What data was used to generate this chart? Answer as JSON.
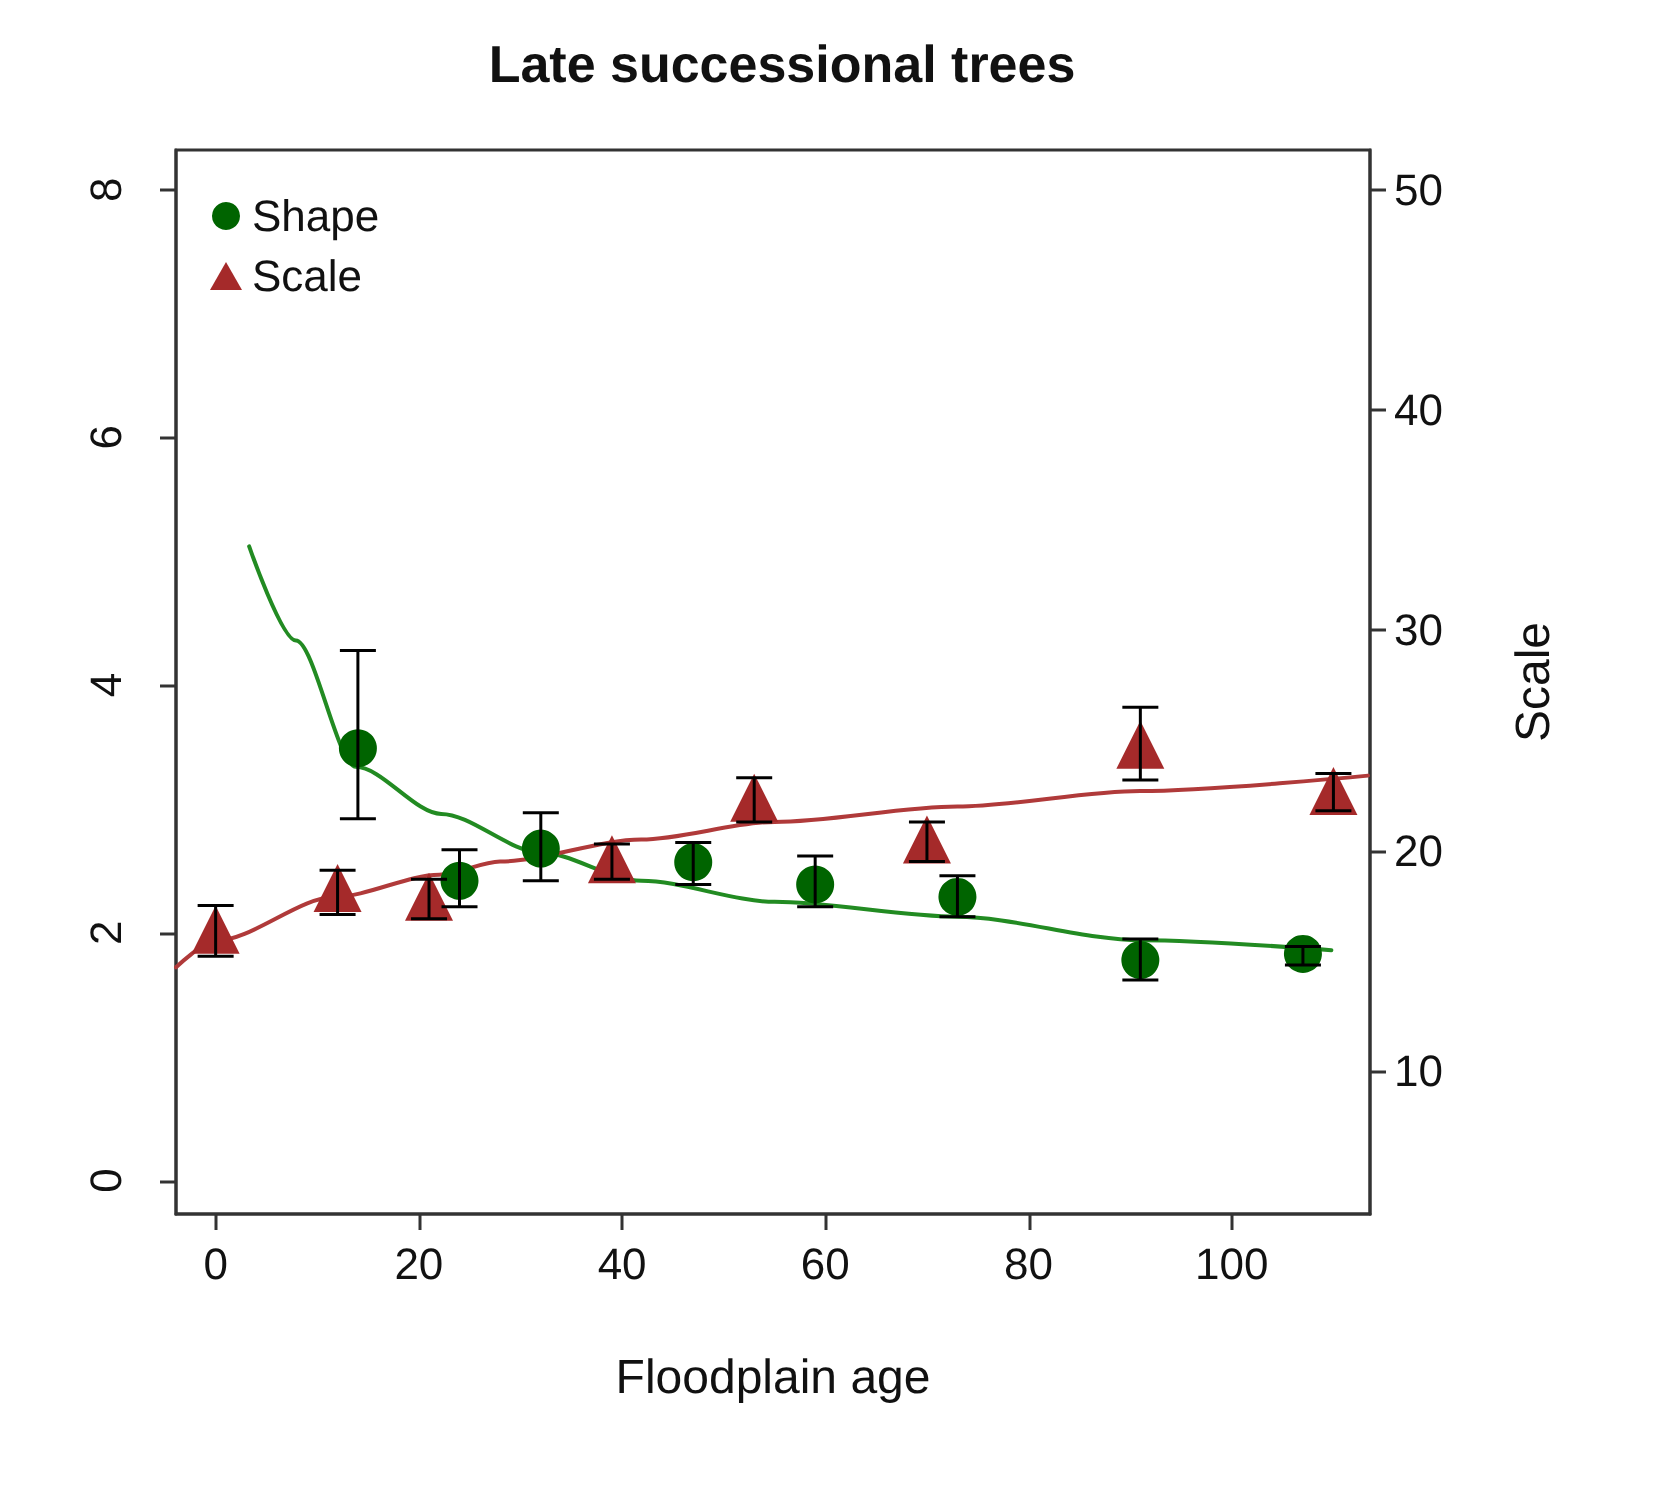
{
  "chart_data": {
    "type": "scatter",
    "title": "Late successional trees",
    "xlabel": "Floodplain age",
    "y2label": "Scale",
    "xlim": [
      -3.9,
      113.6
    ],
    "xticks": [
      0,
      20,
      40,
      60,
      80,
      100
    ],
    "ylim": [
      -0.27,
      8.32
    ],
    "yticks": [
      0,
      2,
      4,
      6,
      8
    ],
    "y2lim": [
      3.5,
      51.8
    ],
    "y2ticks": [
      10,
      20,
      30,
      40,
      50
    ],
    "grid": false,
    "legend": "top left",
    "series": [
      {
        "name": "Shape",
        "marker": "circle",
        "color": "#006400",
        "x": [
          14,
          24,
          32,
          47,
          59,
          73,
          91,
          107
        ],
        "values": [
          3.49,
          2.42,
          2.68,
          2.57,
          2.39,
          2.29,
          1.78,
          1.83
        ],
        "errors": [
          [
            2.92,
            4.28
          ],
          [
            2.21,
            2.67
          ],
          [
            2.42,
            2.97
          ],
          [
            2.39,
            2.73
          ],
          [
            2.21,
            2.62
          ],
          [
            2.13,
            2.46
          ],
          [
            1.62,
            1.95
          ],
          [
            1.74,
            1.89
          ]
        ]
      },
      {
        "name": "Scale",
        "marker": "triangle",
        "axis": "y2",
        "color": "#a52a2a",
        "x": [
          0,
          12,
          21,
          39,
          53,
          70,
          91,
          110
        ],
        "values": [
          16.4,
          18.3,
          17.9,
          19.6,
          22.4,
          20.5,
          24.8,
          22.7
        ],
        "errors": [
          [
            15.2,
            17.5
          ],
          [
            17.1,
            19.1
          ],
          [
            16.9,
            18.7
          ],
          [
            18.7,
            20.3
          ],
          [
            21.3,
            23.3
          ],
          [
            19.5,
            21.3
          ],
          [
            23.2,
            26.5
          ],
          [
            21.8,
            23.5
          ]
        ]
      },
      {
        "type": "line",
        "marker": "none",
        "line_style": "solid",
        "color": "#228b22",
        "x": [
          3.3,
          7.9,
          13.8,
          22.2,
          31.9,
          41.9,
          55,
          73,
          91,
          109.8
        ],
        "values": [
          5.12,
          4.36,
          3.34,
          2.96,
          2.65,
          2.42,
          2.25,
          2.13,
          1.94,
          1.86
        ]
      },
      {
        "type": "line",
        "marker": "none",
        "line_style": "solid",
        "axis": "y2",
        "color": "#b03a3a",
        "x": [
          -3.9,
          0,
          11.8,
          22,
          28,
          41.9,
          55,
          73,
          91,
          113.4
        ],
        "values": [
          14.7,
          15.9,
          17.9,
          18.9,
          19.5,
          20.5,
          21.3,
          22.0,
          22.7,
          23.4
        ]
      }
    ]
  }
}
